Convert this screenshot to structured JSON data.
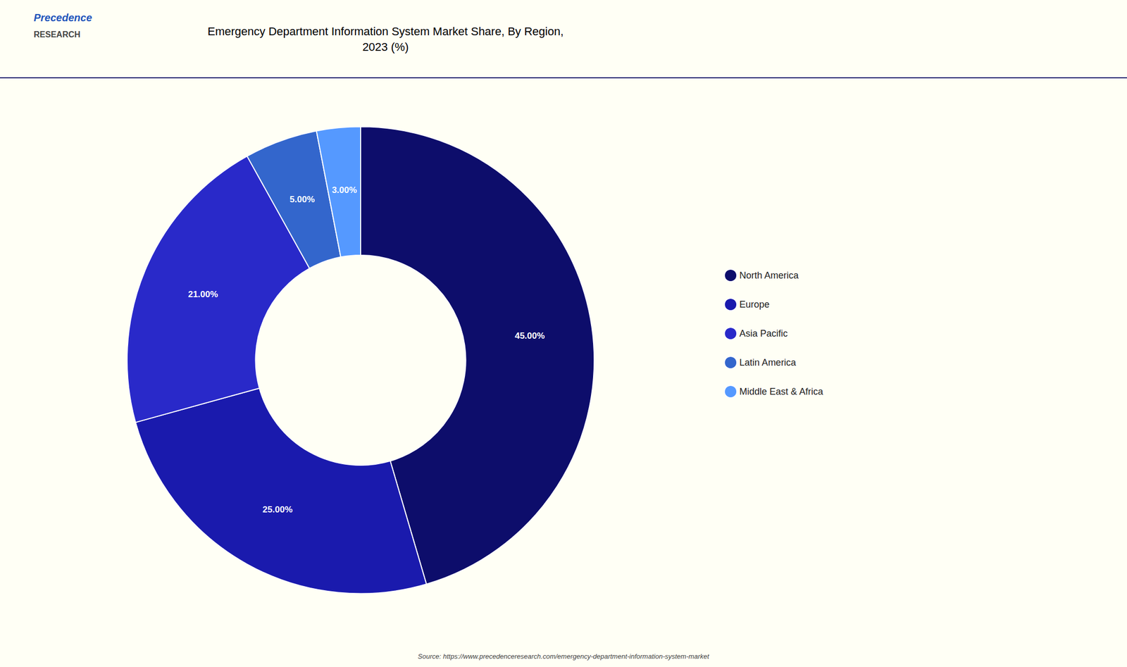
{
  "chart_data": {
    "type": "pie",
    "title": "Emergency Department Information System Market Share, By Region,\n2023 (%)",
    "categories": [
      "North America",
      "Europe",
      "Asia Pacific",
      "Latin America",
      "Middle East & Africa"
    ],
    "values": [
      45.0,
      25.0,
      21.0,
      5.0,
      3.0
    ],
    "value_labels": [
      "45.00%",
      "25.00%",
      "21.00%",
      "5.00%",
      "3.00%"
    ],
    "colors": [
      "#0d0d6b",
      "#1a1aad",
      "#2929c9",
      "#3366cc",
      "#5599ff"
    ],
    "data_labels": true,
    "legend": "right",
    "annotations": [
      "Precedence",
      "RESEARCH",
      "Source: https://www.precedenceresearch.com/emergency-department-information-system-market"
    ]
  }
}
